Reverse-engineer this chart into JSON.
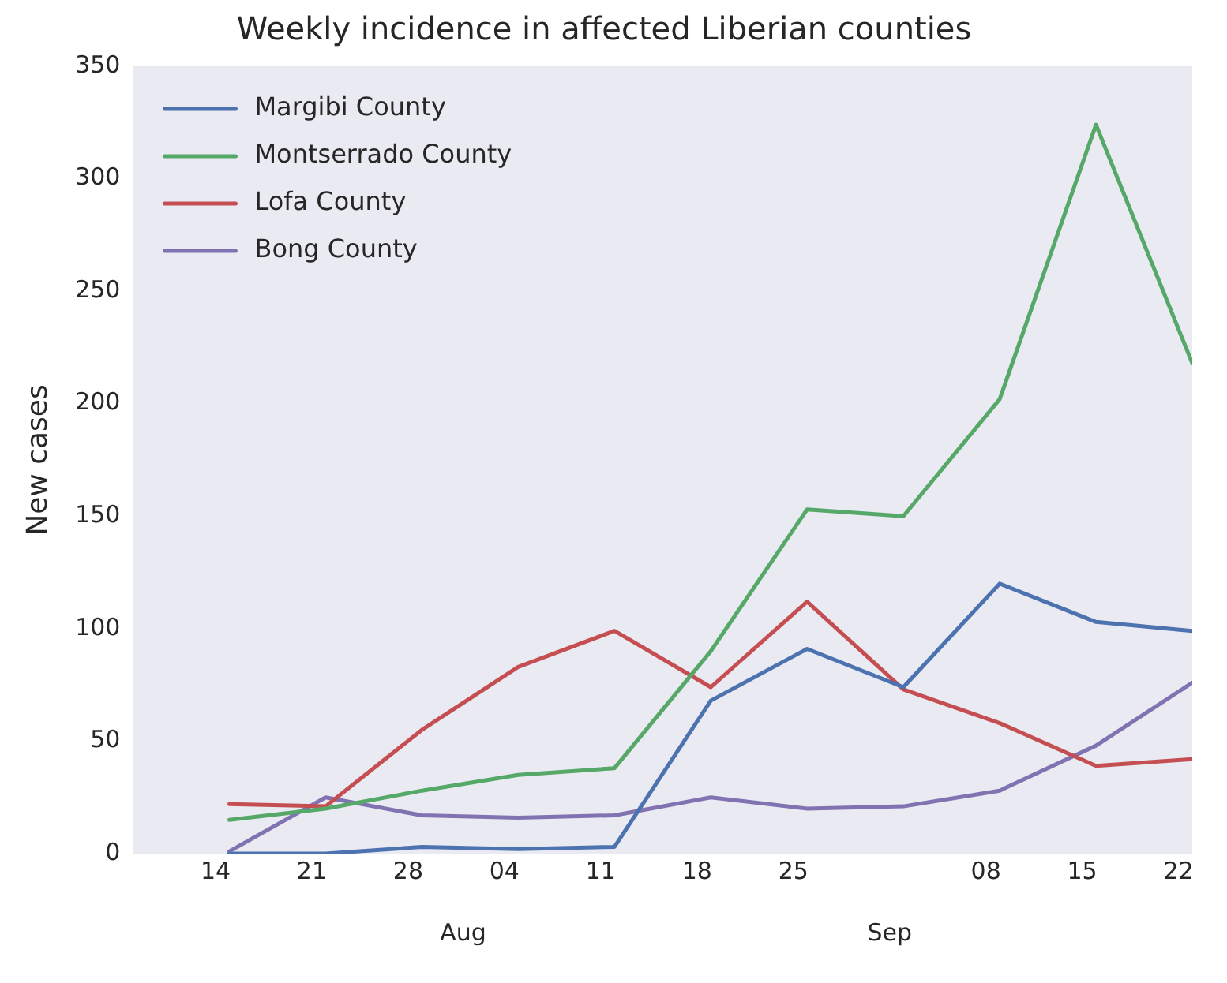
{
  "chart_data": {
    "type": "line",
    "title": "Weekly incidence in affected Liberian counties",
    "ylabel": "New cases",
    "x": [
      "--07-15",
      "--07-22",
      "--07-29",
      "--08-05",
      "--08-12",
      "--08-19",
      "--08-26",
      "--09-02",
      "--09-09",
      "--09-16",
      "--09-23"
    ],
    "series": [
      {
        "name": "Margibi County",
        "color": "#4c72b0",
        "values": [
          0,
          0,
          3,
          2,
          3,
          68,
          91,
          74,
          120,
          103,
          99
        ]
      },
      {
        "name": "Montserrado County",
        "color": "#55a868",
        "values": [
          15,
          20,
          28,
          35,
          38,
          90,
          153,
          150,
          202,
          324,
          218
        ]
      },
      {
        "name": "Lofa County",
        "color": "#c44e52",
        "values": [
          22,
          21,
          55,
          83,
          99,
          74,
          112,
          73,
          58,
          39,
          42
        ]
      },
      {
        "name": "Bong County",
        "color": "#8172b2",
        "values": [
          1,
          25,
          17,
          16,
          17,
          25,
          20,
          21,
          28,
          48,
          76
        ]
      }
    ],
    "xlim": [
      "--07-08",
      "--09-23"
    ],
    "xticks": [
      {
        "value": "--07-14",
        "label": "14"
      },
      {
        "value": "--07-21",
        "label": "21"
      },
      {
        "value": "--07-28",
        "label": "28"
      },
      {
        "value": "--08-04",
        "label": "04"
      },
      {
        "value": "--08-11",
        "label": "11"
      },
      {
        "value": "--08-18",
        "label": "18"
      },
      {
        "value": "--08-25",
        "label": "25"
      },
      {
        "value": "--09-08",
        "label": "08"
      },
      {
        "value": "--09-15",
        "label": "15"
      },
      {
        "value": "--09-22",
        "label": "22"
      }
    ],
    "x2lim": [
      "--07-08",
      "--09-23"
    ],
    "x2ticks": [
      {
        "value": "--08-01",
        "label": "Aug"
      },
      {
        "value": "--09-01",
        "label": "Sep"
      }
    ],
    "ylim": [
      0,
      350
    ],
    "yticks": [
      0,
      50,
      100,
      150,
      200,
      250,
      300,
      350
    ],
    "grid": false,
    "legend": "top left",
    "marker": "none",
    "line_style": "solid"
  }
}
